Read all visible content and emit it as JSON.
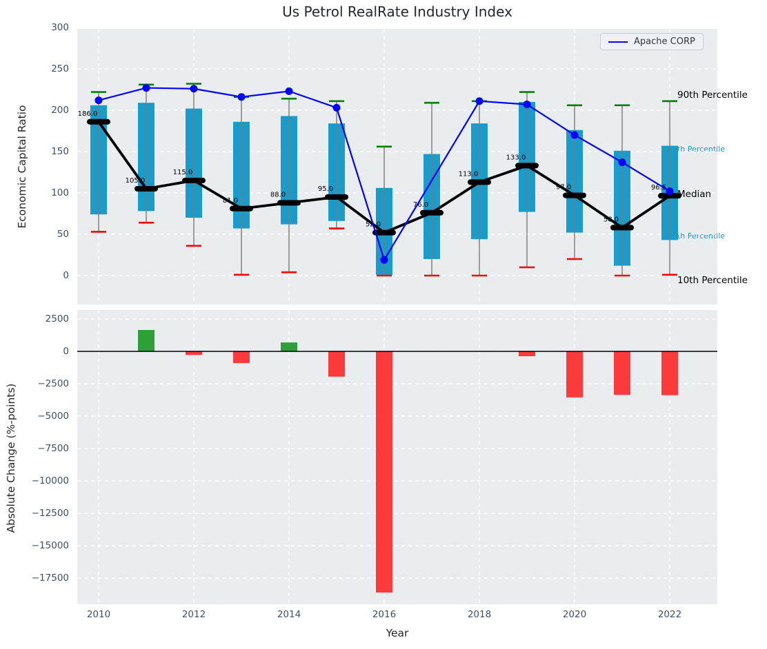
{
  "title": "Us Petrol RealRate Industry Index",
  "legend": {
    "label": "Apache CORP"
  },
  "colors": {
    "axes_bg": "#e9edf0",
    "grid": "#ffffff",
    "tick": "#3d4f63",
    "text": "#262626",
    "box": "#1a9bca",
    "whisker": "#7a7a7a",
    "p90_cap": "#008000",
    "p10_cap": "#ff0000",
    "median": "#000000",
    "company_line": "#0000ff",
    "bar_positive": "#2da038",
    "bar_negative": "#fb3b3b",
    "zero_line": "#000000",
    "annotation_accent": "#1a9bca"
  },
  "chart_data": [
    {
      "type": "box",
      "ylabel": "Economic Capital Ratio",
      "categories": [
        2010,
        2011,
        2012,
        2013,
        2014,
        2015,
        2016,
        2017,
        2018,
        2019,
        2020,
        2021,
        2022
      ],
      "percentiles": {
        "p10": [
          53,
          64,
          36,
          1,
          4,
          57,
          0,
          0,
          0,
          10,
          20,
          0,
          1
        ],
        "p25": [
          74,
          78,
          70,
          57,
          62,
          66,
          1,
          20,
          44,
          77,
          52,
          12,
          43
        ],
        "median": [
          186,
          105,
          115,
          81,
          88,
          95,
          52,
          76,
          113,
          133,
          97,
          58,
          96.5
        ],
        "p75": [
          206,
          209,
          202,
          186,
          193,
          184,
          106,
          147,
          184,
          210,
          176,
          151,
          157
        ],
        "p90": [
          222,
          231,
          232,
          216,
          214,
          211,
          156,
          209,
          211,
          222,
          206,
          206,
          211
        ]
      },
      "median_labels": [
        "186.0",
        "105.0",
        "115.0",
        "81.0",
        "88.0",
        "95.0",
        "52.0",
        "76.0",
        "113.0",
        "133.0",
        "97.0",
        "58.0",
        "96.5"
      ],
      "series": [
        {
          "name": "Apache CORP",
          "values": [
            212,
            227,
            226,
            216,
            223,
            203,
            19,
            null,
            211,
            207,
            170,
            137,
            102
          ]
        }
      ],
      "yticks": [
        0,
        50,
        100,
        150,
        200,
        250,
        300
      ],
      "ylim": [
        -35,
        298.3
      ],
      "grid": true,
      "legend_position": "upper right",
      "annotations": [
        {
          "text": "90th Percentile",
          "style": "large",
          "value": 217.5
        },
        {
          "text": "75th Percentile",
          "style": "small",
          "value": 152.5
        },
        {
          "text": "Median",
          "style": "large",
          "value": 97.5
        },
        {
          "text": "25th Percentile",
          "style": "small",
          "value": 47.5
        },
        {
          "text": "10th Percentile",
          "style": "large",
          "value": -7
        }
      ]
    },
    {
      "type": "bar",
      "ylabel": "Absolute Change (%-points)",
      "xlabel": "Year",
      "categories": [
        2010,
        2011,
        2012,
        2013,
        2014,
        2015,
        2016,
        2017,
        2018,
        2019,
        2020,
        2021,
        2022
      ],
      "values": [
        null,
        1650,
        -270,
        -900,
        690,
        -1950,
        -18600,
        null,
        null,
        -370,
        -3550,
        -3350,
        -3380
      ],
      "yticks": [
        2500,
        0,
        -2500,
        -5000,
        -7500,
        -10000,
        -12500,
        -15000,
        -17500
      ],
      "xticks": [
        2010,
        2012,
        2014,
        2016,
        2018,
        2020,
        2022
      ],
      "ylim": [
        -19500,
        3190
      ],
      "grid": true
    }
  ]
}
